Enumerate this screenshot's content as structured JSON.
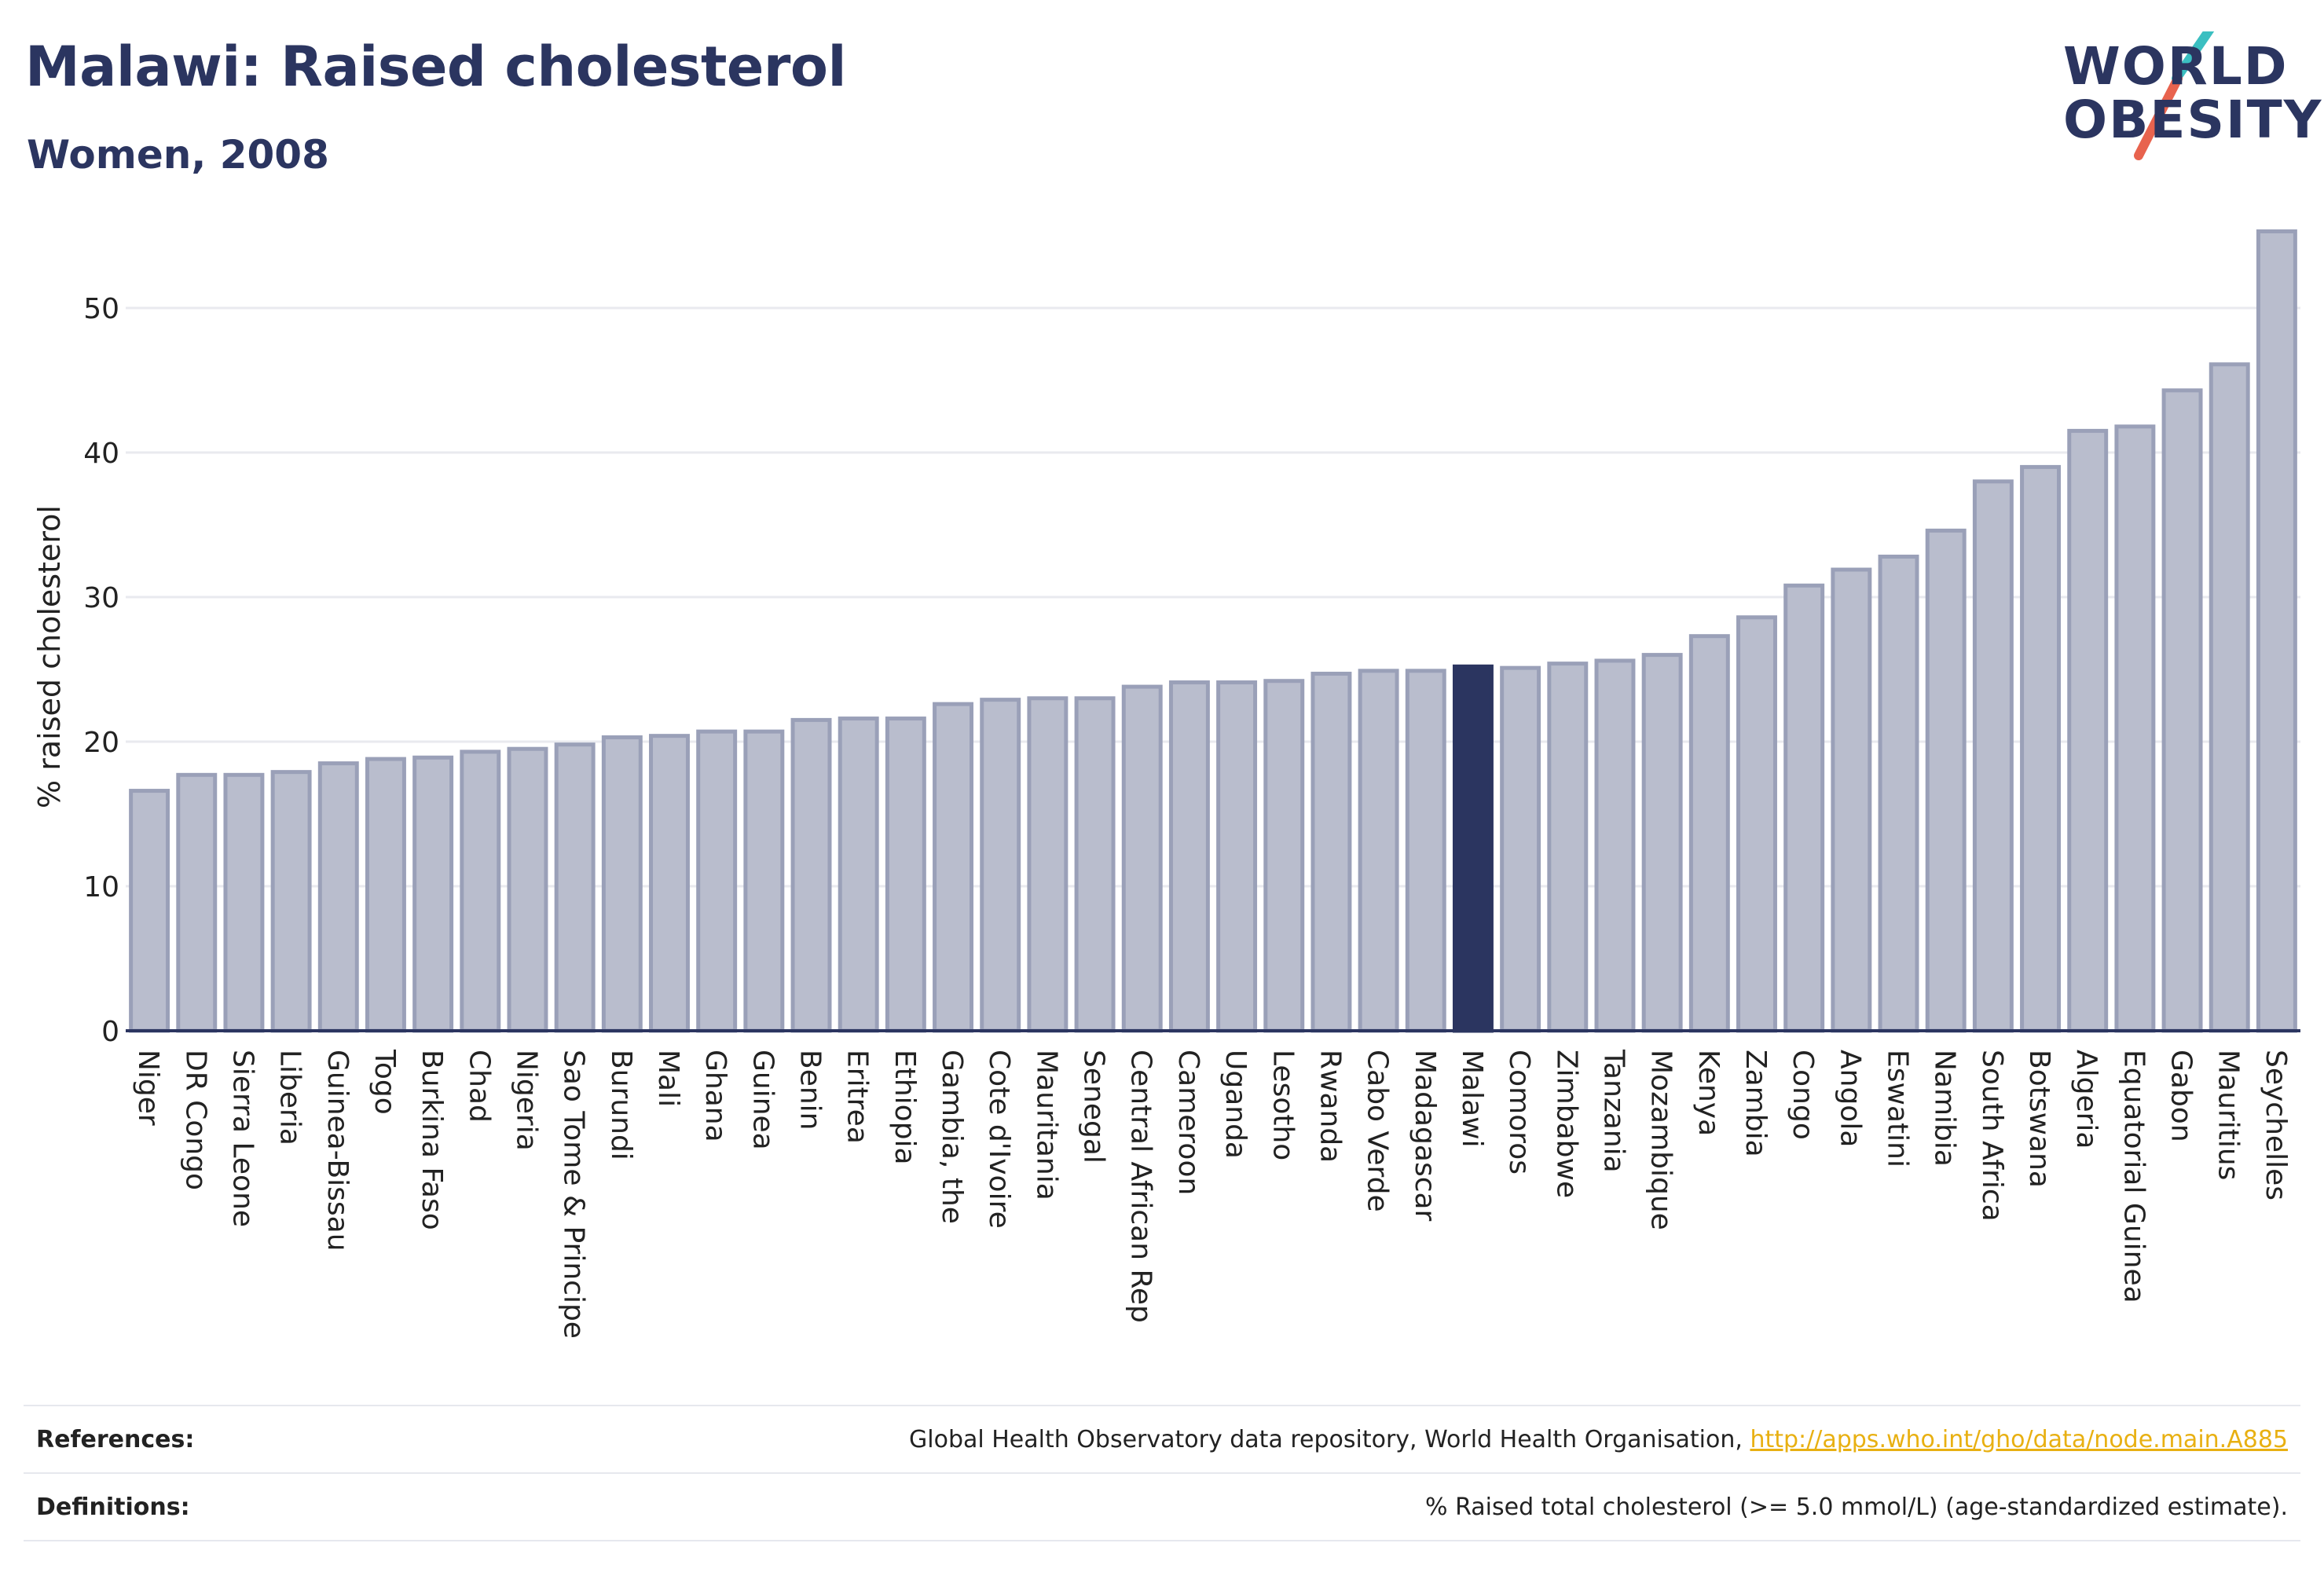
{
  "header": {
    "title": "Malawi: Raised cholesterol",
    "subtitle": "Women, 2008"
  },
  "logo": {
    "line1": "WORLD",
    "line2": "OBESITY",
    "slash_colors": [
      "#3bbfc1",
      "#e8634e"
    ]
  },
  "colors": {
    "bar_default": "#b9bdcd",
    "bar_border": "#9aa0b8",
    "bar_highlight": "#2b3560",
    "axis": "#2b3560",
    "grid": "#e9eaef"
  },
  "chart_data": {
    "type": "bar",
    "ylabel": "% raised cholesterol",
    "ylim": [
      0,
      55
    ],
    "yticks": [
      0,
      10,
      20,
      30,
      40,
      50
    ],
    "grid": true,
    "highlight": "Malawi",
    "categories": [
      "Niger",
      "DR Congo",
      "Sierra Leone",
      "Liberia",
      "Guinea-Bissau",
      "Togo",
      "Burkina Faso",
      "Chad",
      "Nigeria",
      "Sao Tome & Principe",
      "Burundi",
      "Mali",
      "Ghana",
      "Guinea",
      "Benin",
      "Eritrea",
      "Ethiopia",
      "Gambia, the",
      "Cote d'Ivoire",
      "Mauritania",
      "Senegal",
      "Central African Rep",
      "Cameroon",
      "Uganda",
      "Lesotho",
      "Rwanda",
      "Cabo Verde",
      "Madagascar",
      "Malawi",
      "Comoros",
      "Zimbabwe",
      "Tanzania",
      "Mozambique",
      "Kenya",
      "Zambia",
      "Congo",
      "Angola",
      "Eswatini",
      "Namibia",
      "South Africa",
      "Botswana",
      "Algeria",
      "Equatorial Guinea",
      "Gabon",
      "Mauritius",
      "Seychelles"
    ],
    "values": [
      16.6,
      17.7,
      17.7,
      17.9,
      18.5,
      18.8,
      18.9,
      19.3,
      19.5,
      19.8,
      20.3,
      20.4,
      20.7,
      20.7,
      21.5,
      21.6,
      21.6,
      22.6,
      22.9,
      23.0,
      23.0,
      23.8,
      24.1,
      24.1,
      24.2,
      24.7,
      24.9,
      24.9,
      25.2,
      25.1,
      25.4,
      25.6,
      26.0,
      27.3,
      28.6,
      30.8,
      31.9,
      32.8,
      34.6,
      38.0,
      39.0,
      41.5,
      41.8,
      44.3,
      46.1,
      55.3
    ]
  },
  "footer": {
    "references_label": "References:",
    "references_text": "Global Health Observatory data repository, World Health Organisation, ",
    "references_link": "http://apps.who.int/gho/data/node.main.A885",
    "definitions_label": "Definitions:",
    "definitions_text": "% Raised total cholesterol (>= 5.0 mmol/L) (age-standardized estimate)."
  }
}
